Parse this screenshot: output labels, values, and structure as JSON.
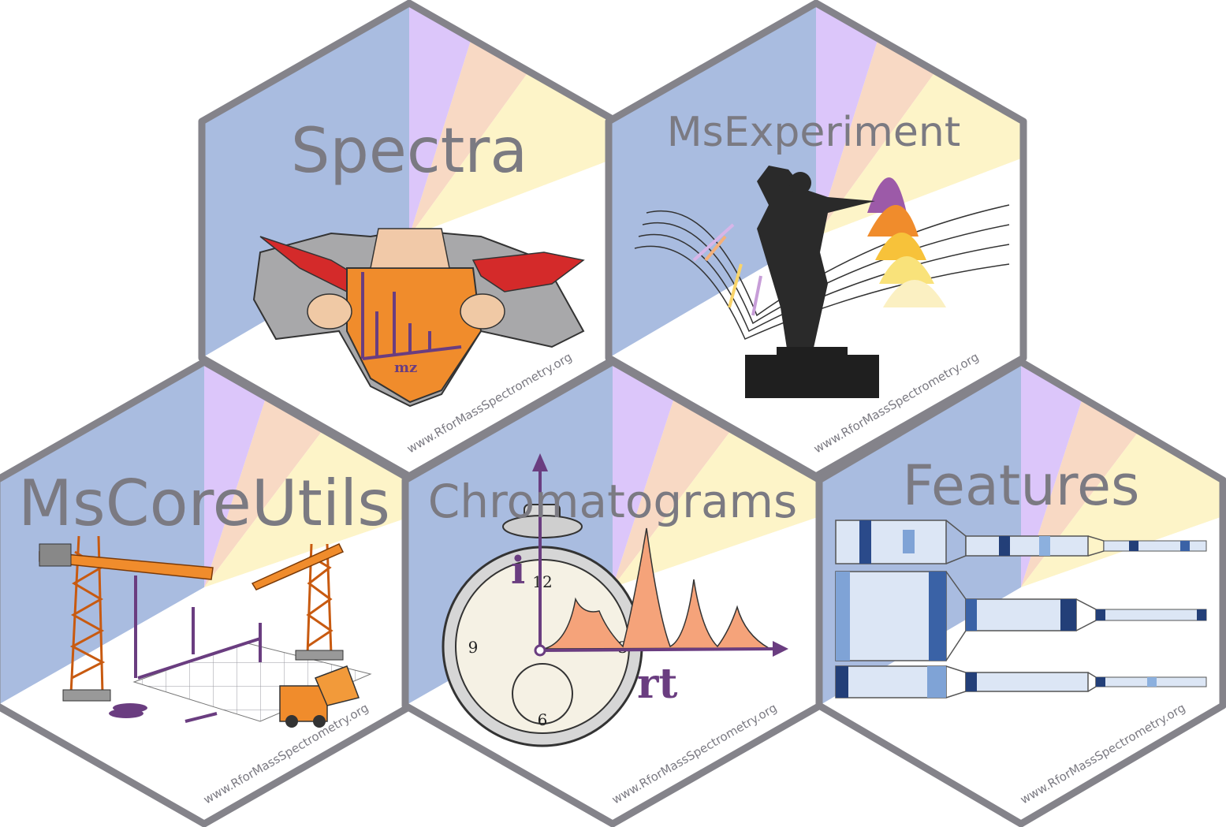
{
  "stickers": [
    {
      "id": "spectra",
      "title": "Spectra",
      "url": "www.RforMassSpectrometry.org",
      "illustration": "superhero-shirt-spectrum-icon"
    },
    {
      "id": "msexperiment",
      "title": "MsExperiment",
      "url": "www.RforMassSpectrometry.org",
      "illustration": "conductor-music-peaks-icon"
    },
    {
      "id": "mscoreutils",
      "title": "MsCoreUtils",
      "url": "www.RforMassSpectrometry.org",
      "illustration": "construction-cranes-icon"
    },
    {
      "id": "chromatograms",
      "title": "Chromatograms",
      "url": "www.RforMassSpectrometry.org",
      "illustration": "stopwatch-chromatogram-icon"
    },
    {
      "id": "features",
      "title": "Features",
      "url": "www.RforMassSpectrometry.org",
      "illustration": "heatmap-matrices-icon"
    }
  ],
  "chromatogram_labels": {
    "intensity": "i",
    "retention": "rt",
    "spectrum_axis": "mz"
  },
  "colors": {
    "border": "#84838a",
    "title": "#7b7a82",
    "blue": "#a9bce0",
    "lilac": "#dcc6fa",
    "peach": "#f8d9c4",
    "yellow": "#fdf4c8",
    "purple": "#6a3d80",
    "orange": "#f08c2c",
    "heat_dark": "#233f78"
  }
}
